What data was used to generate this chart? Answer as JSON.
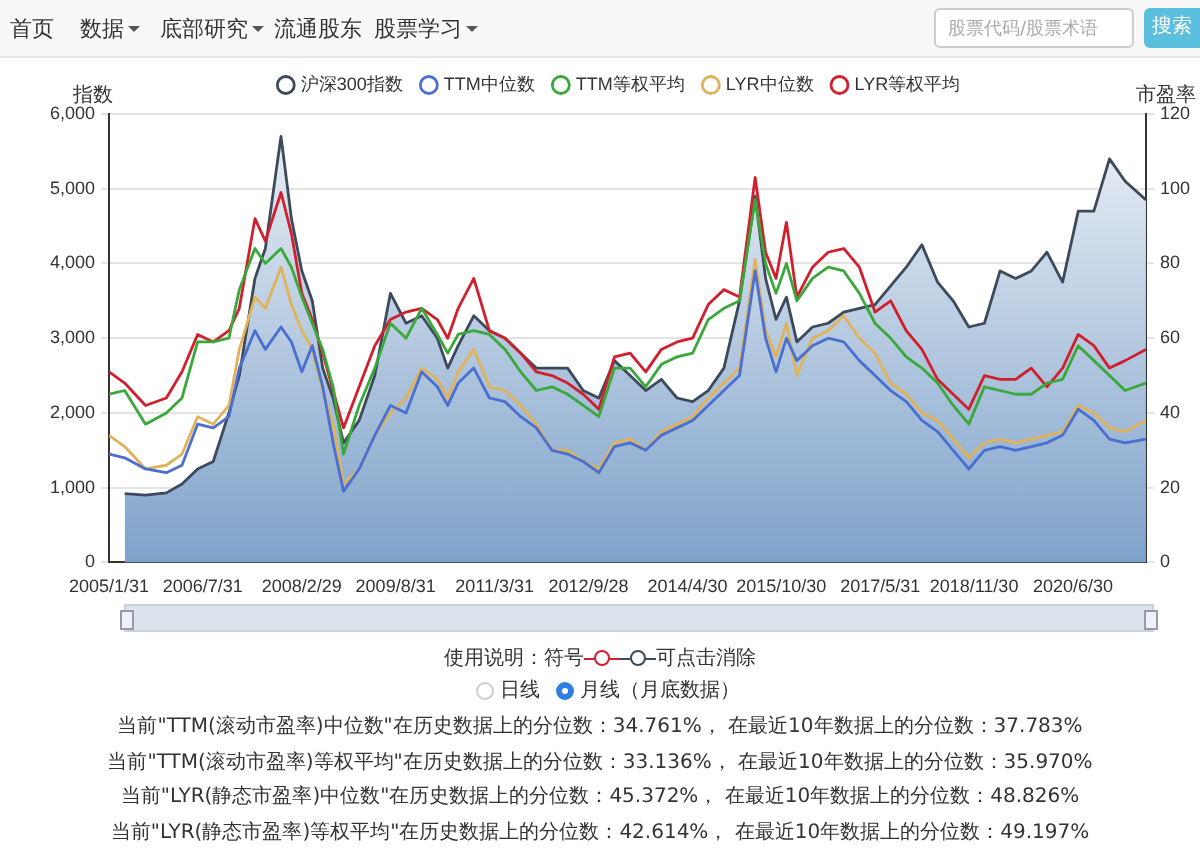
{
  "chart_data": {
    "type": "line",
    "legend": "top",
    "grid": "y",
    "marker": "none",
    "ylabel": "指数",
    "y2label": "市盈率",
    "xlim": [
      "2005-01",
      "2021-08"
    ],
    "xticks": [
      {
        "value": "2005-01",
        "label": "2005/1/31"
      },
      {
        "value": "2006-07",
        "label": "2006/7/31"
      },
      {
        "value": "2008-02",
        "label": "2008/2/29"
      },
      {
        "value": "2009-08",
        "label": "2009/8/31"
      },
      {
        "value": "2011-03",
        "label": "2011/3/31"
      },
      {
        "value": "2012-09",
        "label": "2012/9/28"
      },
      {
        "value": "2014-04",
        "label": "2014/4/30"
      },
      {
        "value": "2015-10",
        "label": "2015/10/30"
      },
      {
        "value": "2017-05",
        "label": "2017/5/31"
      },
      {
        "value": "2018-11",
        "label": "2018/11/30"
      },
      {
        "value": "2020-06",
        "label": "2020/6/30"
      }
    ],
    "ylim": [
      0,
      6000
    ],
    "yticks": [
      {
        "value": 0,
        "label": "0"
      },
      {
        "value": 1000,
        "label": "1,000"
      },
      {
        "value": 2000,
        "label": "2,000"
      },
      {
        "value": 3000,
        "label": "3,000"
      },
      {
        "value": 4000,
        "label": "4,000"
      },
      {
        "value": 5000,
        "label": "5,000"
      },
      {
        "value": 6000,
        "label": "6,000"
      }
    ],
    "y2lim": [
      0,
      120
    ],
    "y2ticks": [
      0,
      20,
      40,
      60,
      80,
      100,
      120
    ],
    "x": [
      "2005-01",
      "2005-04",
      "2005-08",
      "2005-12",
      "2006-03",
      "2006-06",
      "2006-09",
      "2006-12",
      "2007-02",
      "2007-05",
      "2007-07",
      "2007-10",
      "2007-12",
      "2008-02",
      "2008-04",
      "2008-06",
      "2008-08",
      "2008-10",
      "2009-01",
      "2009-04",
      "2009-07",
      "2009-10",
      "2010-01",
      "2010-04",
      "2010-06",
      "2010-08",
      "2010-11",
      "2011-02",
      "2011-05",
      "2011-08",
      "2011-11",
      "2012-02",
      "2012-05",
      "2012-08",
      "2012-11",
      "2013-02",
      "2013-05",
      "2013-08",
      "2013-11",
      "2014-02",
      "2014-05",
      "2014-08",
      "2014-11",
      "2015-02",
      "2015-05",
      "2015-07",
      "2015-09",
      "2015-11",
      "2016-01",
      "2016-04",
      "2016-07",
      "2016-10",
      "2017-01",
      "2017-04",
      "2017-07",
      "2017-10",
      "2018-01",
      "2018-04",
      "2018-07",
      "2018-10",
      "2019-01",
      "2019-04",
      "2019-07",
      "2019-10",
      "2020-01",
      "2020-04",
      "2020-07",
      "2020-10",
      "2021-01",
      "2021-04",
      "2021-08"
    ],
    "series": [
      {
        "name": "沪深300指数",
        "type": "area",
        "color": "#3c4a5c",
        "values": [
          null,
          920,
          900,
          930,
          1050,
          1250,
          1350,
          2000,
          2500,
          3800,
          4200,
          5700,
          4600,
          3900,
          3500,
          2600,
          2200,
          1600,
          1900,
          2500,
          3600,
          3200,
          3300,
          3000,
          2600,
          2900,
          3300,
          3100,
          3000,
          2800,
          2600,
          2600,
          2600,
          2300,
          2200,
          2700,
          2500,
          2300,
          2450,
          2200,
          2150,
          2300,
          2600,
          3500,
          4900,
          3800,
          3250,
          3550,
          2950,
          3150,
          3200,
          3350,
          3400,
          3450,
          3700,
          3950,
          4250,
          3750,
          3500,
          3150,
          3200,
          3900,
          3800,
          3900,
          4150,
          3750,
          4700,
          4700,
          5400,
          5100,
          4850
        ]
      },
      {
        "name": "TTM中位数",
        "axis": "y2",
        "color": "#4a6fd0",
        "values": [
          29,
          28,
          25,
          24,
          26,
          37,
          36,
          39,
          52,
          62,
          57,
          63,
          59,
          51,
          58,
          47,
          32,
          19,
          25,
          34,
          42,
          40,
          51,
          47,
          42,
          48,
          52,
          44,
          43,
          39,
          36,
          30,
          29,
          27,
          24,
          31,
          32,
          30,
          34,
          36,
          38,
          42,
          46,
          50,
          78,
          60,
          51,
          60,
          54,
          58,
          60,
          59,
          54,
          50,
          46,
          43,
          38,
          35,
          30,
          25,
          30,
          31,
          30,
          31,
          32,
          34,
          41,
          38,
          33,
          32,
          33
        ]
      },
      {
        "name": "TTM等权平均",
        "axis": "y2",
        "color": "#3aa83a",
        "values": [
          45,
          46,
          37,
          40,
          44,
          59,
          59,
          60,
          73,
          84,
          80,
          84,
          79,
          71,
          64,
          57,
          47,
          29,
          42,
          52,
          64,
          60,
          68,
          61,
          56,
          61,
          62,
          61,
          57,
          51,
          46,
          47,
          45,
          42,
          39,
          52,
          52,
          47,
          53,
          55,
          56,
          65,
          68,
          70,
          97,
          80,
          72,
          80,
          70,
          76,
          79,
          78,
          72,
          64,
          60,
          55,
          52,
          48,
          42,
          37,
          47,
          46,
          45,
          45,
          48,
          49,
          58,
          54,
          50,
          46,
          48
        ]
      },
      {
        "name": "LYR中位数",
        "axis": "y2",
        "color": "#e0b35a",
        "values": [
          34,
          31,
          25,
          26,
          29,
          39,
          37,
          42,
          57,
          71,
          68,
          79,
          69,
          62,
          57,
          46,
          37,
          21,
          25,
          34,
          40,
          44,
          52,
          49,
          44,
          51,
          57,
          47,
          46,
          42,
          37,
          30,
          30,
          27,
          25,
          32,
          33,
          30,
          35,
          37,
          39,
          44,
          48,
          52,
          81,
          62,
          55,
          64,
          50,
          60,
          62,
          66,
          60,
          56,
          48,
          45,
          40,
          38,
          33,
          28,
          32,
          33,
          32,
          33,
          34,
          35,
          42,
          40,
          36,
          35,
          38
        ]
      },
      {
        "name": "LYR等权平均",
        "axis": "y2",
        "color": "#d0202e",
        "values": [
          51,
          48,
          42,
          44,
          51,
          61,
          59,
          62,
          68,
          92,
          86,
          99,
          88,
          72,
          65,
          56,
          46,
          36,
          47,
          58,
          65,
          67,
          68,
          65,
          60,
          68,
          76,
          62,
          60,
          56,
          51,
          50,
          48,
          45,
          41,
          55,
          56,
          51,
          57,
          59,
          60,
          69,
          73,
          71,
          103,
          83,
          76,
          91,
          71,
          79,
          83,
          84,
          79,
          67,
          70,
          62,
          57,
          49,
          45,
          41,
          50,
          49,
          49,
          52,
          47,
          52,
          61,
          58,
          52,
          54,
          57
        ]
      }
    ],
    "annotations": [
      "首页",
      "数据",
      "底部研究",
      "流通股东",
      "股票学习",
      "股票代码/股票术语",
      "搜索",
      "使用说明：符号",
      "可点击消除",
      "日线",
      "月线（月底数据）",
      "当前\"TTM(滚动市盈率)中位数\"在历史数据上的分位数：34.761%，  在最近10年数据上的分位数：37.783%",
      "当前\"TTM(滚动市盈率)等权平均\"在历史数据上的分位数：33.136%，  在最近10年数据上的分位数：35.970%",
      "当前\"LYR(静态市盈率)中位数\"在历史数据上的分位数：45.372%，  在最近10年数据上的分位数：48.826%",
      "当前\"LYR(静态市盈率)等权平均\"在历史数据上的分位数：42.614%，  在最近10年数据上的分位数：49.197%"
    ]
  }
}
